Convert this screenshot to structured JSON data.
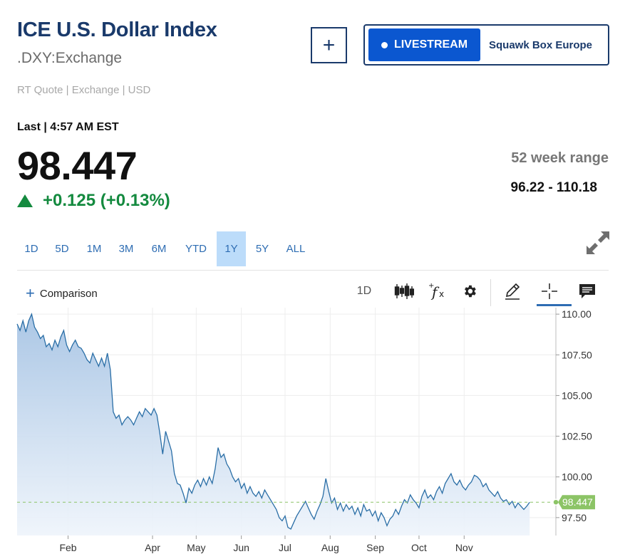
{
  "header": {
    "title": "ICE U.S. Dollar Index",
    "symbol": ".DXY:Exchange",
    "quote_source": "RT Quote | Exchange | USD",
    "add_label": "+"
  },
  "livestream": {
    "button_label": "LIVESTREAM",
    "show_name": "Squawk Box Europe"
  },
  "quote": {
    "last_label": "Last | 4:57 AM EST",
    "price": "98.447",
    "change": "+0.125 (+0.13%)",
    "change_color": "#148a3f",
    "range_label": "52 week range",
    "range_value": "96.22 - 110.18"
  },
  "timeframes": {
    "items": [
      "1D",
      "5D",
      "1M",
      "3M",
      "6M",
      "YTD",
      "1Y",
      "5Y",
      "ALL"
    ],
    "selected": "1Y"
  },
  "toolbar": {
    "comparison_label": "Comparison",
    "interval_label": "1D",
    "icons": [
      "candlestick-icon",
      "fx-indicator-icon",
      "gear-icon",
      "pencil-icon",
      "crosshair-icon",
      "comment-icon"
    ]
  },
  "chart_data": {
    "type": "area",
    "line_color": "#2a6ea6",
    "fill_color": "#c6d9ee",
    "last_value_label": "98.447",
    "last_value": 98.447,
    "last_badge_color": "#8cc466",
    "ylim": [
      96.4,
      110.4
    ],
    "y_ticks": [
      110.0,
      107.5,
      105.0,
      102.5,
      100.0,
      97.5
    ],
    "y_tick_labels": [
      "110.00",
      "107.50",
      "105.00",
      "102.50",
      "100.00",
      "97.50"
    ],
    "x_ticks": [
      {
        "label": "Feb",
        "day": 35
      },
      {
        "label": "Apr",
        "day": 93
      },
      {
        "label": "May",
        "day": 123
      },
      {
        "label": "Jun",
        "day": 154
      },
      {
        "label": "Jul",
        "day": 184
      },
      {
        "label": "Aug",
        "day": 215
      },
      {
        "label": "Sep",
        "day": 246
      },
      {
        "label": "Oct",
        "day": 276
      },
      {
        "label": "Nov",
        "day": 307
      }
    ],
    "x_range": [
      0,
      370
    ],
    "points": [
      [
        0,
        109.4
      ],
      [
        2,
        109.0
      ],
      [
        4,
        109.6
      ],
      [
        6,
        108.9
      ],
      [
        8,
        109.6
      ],
      [
        10,
        110.0
      ],
      [
        12,
        109.2
      ],
      [
        14,
        108.9
      ],
      [
        16,
        108.5
      ],
      [
        18,
        108.7
      ],
      [
        20,
        108.0
      ],
      [
        22,
        108.2
      ],
      [
        24,
        107.8
      ],
      [
        26,
        108.4
      ],
      [
        28,
        108.0
      ],
      [
        30,
        108.6
      ],
      [
        32,
        109.0
      ],
      [
        34,
        108.1
      ],
      [
        36,
        107.7
      ],
      [
        38,
        108.1
      ],
      [
        40,
        108.4
      ],
      [
        42,
        108.0
      ],
      [
        44,
        107.9
      ],
      [
        46,
        107.6
      ],
      [
        48,
        107.2
      ],
      [
        50,
        107.0
      ],
      [
        52,
        107.6
      ],
      [
        54,
        107.2
      ],
      [
        56,
        106.8
      ],
      [
        58,
        107.3
      ],
      [
        60,
        106.8
      ],
      [
        62,
        107.6
      ],
      [
        64,
        106.6
      ],
      [
        66,
        104.0
      ],
      [
        68,
        103.6
      ],
      [
        70,
        103.8
      ],
      [
        72,
        103.2
      ],
      [
        74,
        103.5
      ],
      [
        76,
        103.7
      ],
      [
        78,
        103.5
      ],
      [
        80,
        103.2
      ],
      [
        82,
        103.6
      ],
      [
        84,
        104.0
      ],
      [
        86,
        103.7
      ],
      [
        88,
        104.2
      ],
      [
        90,
        104.0
      ],
      [
        92,
        103.8
      ],
      [
        94,
        104.2
      ],
      [
        96,
        103.8
      ],
      [
        98,
        102.7
      ],
      [
        100,
        101.4
      ],
      [
        102,
        102.8
      ],
      [
        104,
        102.2
      ],
      [
        106,
        101.6
      ],
      [
        108,
        100.2
      ],
      [
        110,
        99.6
      ],
      [
        112,
        99.5
      ],
      [
        114,
        99.0
      ],
      [
        116,
        98.4
      ],
      [
        118,
        99.3
      ],
      [
        120,
        99.0
      ],
      [
        122,
        99.5
      ],
      [
        124,
        99.8
      ],
      [
        126,
        99.4
      ],
      [
        128,
        99.9
      ],
      [
        130,
        99.5
      ],
      [
        132,
        100.0
      ],
      [
        134,
        99.6
      ],
      [
        136,
        100.5
      ],
      [
        138,
        101.8
      ],
      [
        140,
        101.2
      ],
      [
        142,
        101.4
      ],
      [
        144,
        100.8
      ],
      [
        146,
        100.5
      ],
      [
        148,
        100.0
      ],
      [
        150,
        99.7
      ],
      [
        152,
        99.9
      ],
      [
        154,
        99.3
      ],
      [
        156,
        99.6
      ],
      [
        158,
        99.0
      ],
      [
        160,
        99.4
      ],
      [
        162,
        99.0
      ],
      [
        164,
        98.8
      ],
      [
        166,
        99.1
      ],
      [
        168,
        98.7
      ],
      [
        170,
        99.2
      ],
      [
        172,
        98.9
      ],
      [
        174,
        98.6
      ],
      [
        176,
        98.3
      ],
      [
        178,
        98.0
      ],
      [
        180,
        97.5
      ],
      [
        182,
        97.3
      ],
      [
        184,
        97.6
      ],
      [
        186,
        96.9
      ],
      [
        188,
        96.8
      ],
      [
        190,
        97.2
      ],
      [
        192,
        97.6
      ],
      [
        194,
        97.9
      ],
      [
        196,
        98.2
      ],
      [
        198,
        98.5
      ],
      [
        200,
        98.1
      ],
      [
        202,
        97.7
      ],
      [
        204,
        97.4
      ],
      [
        206,
        97.9
      ],
      [
        208,
        98.3
      ],
      [
        210,
        98.8
      ],
      [
        212,
        99.9
      ],
      [
        214,
        99.1
      ],
      [
        216,
        98.4
      ],
      [
        218,
        98.7
      ],
      [
        220,
        98.0
      ],
      [
        222,
        98.4
      ],
      [
        224,
        97.9
      ],
      [
        226,
        98.3
      ],
      [
        228,
        98.0
      ],
      [
        230,
        98.2
      ],
      [
        232,
        97.7
      ],
      [
        234,
        98.1
      ],
      [
        236,
        97.6
      ],
      [
        238,
        98.3
      ],
      [
        240,
        97.9
      ],
      [
        242,
        98.0
      ],
      [
        244,
        97.6
      ],
      [
        246,
        97.9
      ],
      [
        248,
        97.3
      ],
      [
        250,
        97.8
      ],
      [
        252,
        97.5
      ],
      [
        254,
        97.0
      ],
      [
        256,
        97.4
      ],
      [
        258,
        97.6
      ],
      [
        260,
        98.0
      ],
      [
        262,
        97.7
      ],
      [
        264,
        98.2
      ],
      [
        266,
        98.6
      ],
      [
        268,
        98.4
      ],
      [
        270,
        98.9
      ],
      [
        272,
        98.6
      ],
      [
        274,
        98.4
      ],
      [
        276,
        98.1
      ],
      [
        278,
        98.8
      ],
      [
        280,
        99.2
      ],
      [
        282,
        98.7
      ],
      [
        284,
        98.9
      ],
      [
        286,
        98.6
      ],
      [
        288,
        99.1
      ],
      [
        290,
        99.4
      ],
      [
        292,
        99.0
      ],
      [
        294,
        99.6
      ],
      [
        296,
        99.9
      ],
      [
        298,
        100.2
      ],
      [
        300,
        99.7
      ],
      [
        302,
        99.5
      ],
      [
        304,
        99.8
      ],
      [
        306,
        99.4
      ],
      [
        308,
        99.2
      ],
      [
        310,
        99.5
      ],
      [
        312,
        99.7
      ],
      [
        314,
        100.1
      ],
      [
        316,
        100.0
      ],
      [
        318,
        99.8
      ],
      [
        320,
        99.4
      ],
      [
        322,
        99.6
      ],
      [
        324,
        99.2
      ],
      [
        326,
        99.0
      ],
      [
        328,
        98.8
      ],
      [
        330,
        99.1
      ],
      [
        332,
        98.7
      ],
      [
        334,
        98.5
      ],
      [
        336,
        98.6
      ],
      [
        338,
        98.3
      ],
      [
        340,
        98.5
      ],
      [
        342,
        98.1
      ],
      [
        344,
        98.4
      ],
      [
        346,
        98.2
      ],
      [
        348,
        98.0
      ],
      [
        350,
        98.2
      ],
      [
        352,
        98.447
      ]
    ]
  }
}
